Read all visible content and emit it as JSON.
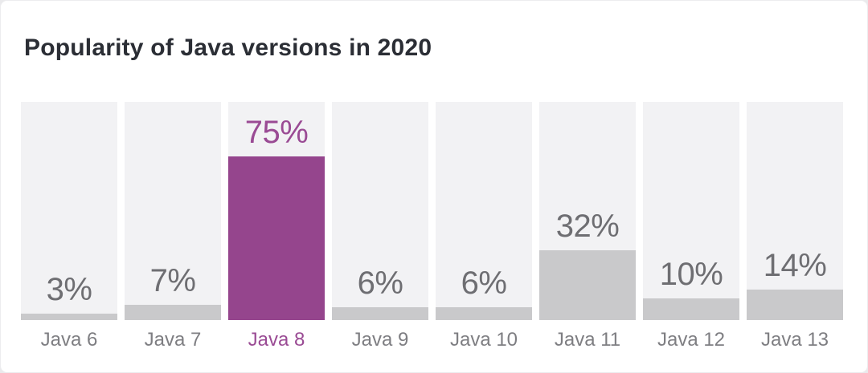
{
  "chart_data": {
    "type": "bar",
    "title": "Popularity of Java versions in 2020",
    "categories": [
      "Java 6",
      "Java 7",
      "Java 8",
      "Java 9",
      "Java 10",
      "Java 11",
      "Java 12",
      "Java 13"
    ],
    "values": [
      3,
      7,
      75,
      6,
      6,
      32,
      10,
      14
    ],
    "value_labels": [
      "3%",
      "7%",
      "75%",
      "6%",
      "6%",
      "32%",
      "10%",
      "14%"
    ],
    "unit": "%",
    "xlabel": "",
    "ylabel": "",
    "ylim": [
      0,
      100
    ],
    "grid": false,
    "legend": false,
    "highlight_index": 2,
    "highlight_category": "Java 8",
    "colors": {
      "bar_default": "#c9c9cb",
      "bar_highlight": "#95458d",
      "track": "#f2f2f4",
      "value_label_default": "#6e6e72",
      "value_label_highlight": "#9a4b94",
      "category_label_default": "#7e7e82",
      "category_label_highlight": "#9a4b94",
      "title": "#2b2e35",
      "card_background": "#ffffff"
    }
  }
}
